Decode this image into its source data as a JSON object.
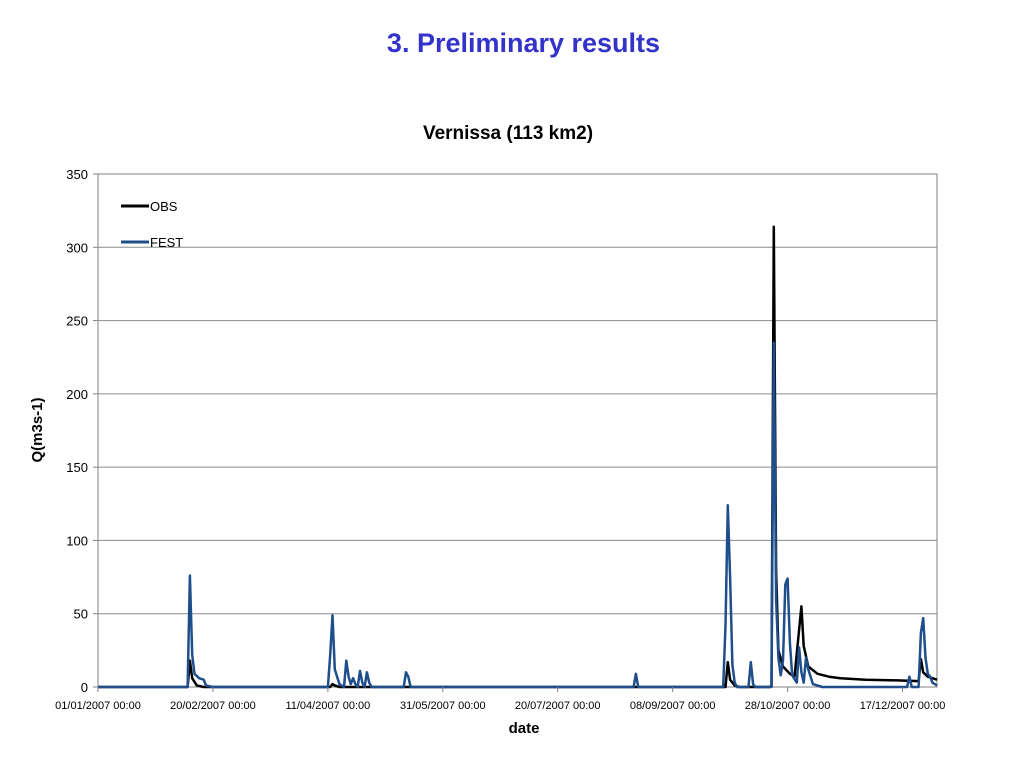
{
  "slide": {
    "title": "3. Preliminary results"
  },
  "chart_data": {
    "type": "line",
    "title": "Vernissa (113 km2)",
    "xlabel": "date",
    "ylabel": "Q(m3s-1)",
    "ylim": [
      0,
      350
    ],
    "y_ticks": [
      "0",
      "50",
      "100",
      "150",
      "200",
      "250",
      "300",
      "350"
    ],
    "xlim": [
      "2007-01-01",
      "2008-01-01"
    ],
    "x_ticks": [
      "01/01/2007 00:00",
      "20/02/2007 00:00",
      "11/04/2007 00:00",
      "31/05/2007 00:00",
      "20/07/2007 00:00",
      "08/09/2007 00:00",
      "28/10/2007 00:00",
      "17/12/2007 00:00"
    ],
    "grid": true,
    "legend": "top-left",
    "series": [
      {
        "name": "OBS",
        "color": "#000000",
        "points": [
          [
            "2007-01-01",
            0
          ],
          [
            "2007-02-09",
            0
          ],
          [
            "2007-02-10",
            18
          ],
          [
            "2007-02-11",
            6
          ],
          [
            "2007-02-13",
            1
          ],
          [
            "2007-02-16",
            0
          ],
          [
            "2007-04-12",
            0
          ],
          [
            "2007-04-13",
            2
          ],
          [
            "2007-04-14",
            1
          ],
          [
            "2007-04-16",
            0
          ],
          [
            "2007-06-01",
            0
          ],
          [
            "2007-08-31",
            0
          ],
          [
            "2007-10-01",
            0
          ],
          [
            "2007-10-02",
            17
          ],
          [
            "2007-10-03",
            5
          ],
          [
            "2007-10-05",
            1
          ],
          [
            "2007-10-07",
            0
          ],
          [
            "2007-10-20",
            0
          ],
          [
            "2007-10-21",
            0.5
          ],
          [
            "2007-10-22",
            314
          ],
          [
            "2007-10-23",
            80
          ],
          [
            "2007-10-24",
            25
          ],
          [
            "2007-10-26",
            14
          ],
          [
            "2007-10-29",
            9
          ],
          [
            "2007-10-31",
            7
          ],
          [
            "2007-11-03",
            55
          ],
          [
            "2007-11-04",
            28
          ],
          [
            "2007-11-06",
            14
          ],
          [
            "2007-11-10",
            9
          ],
          [
            "2007-11-15",
            7
          ],
          [
            "2007-11-20",
            6
          ],
          [
            "2007-12-01",
            5
          ],
          [
            "2007-12-15",
            4.5
          ],
          [
            "2007-12-24",
            4
          ],
          [
            "2007-12-25",
            19
          ],
          [
            "2007-12-26",
            10
          ],
          [
            "2007-12-28",
            7
          ],
          [
            "2008-01-01",
            5
          ]
        ]
      },
      {
        "name": "FEST",
        "color": "#1f4e8c",
        "points": [
          [
            "2007-01-01",
            0
          ],
          [
            "2007-02-09",
            0
          ],
          [
            "2007-02-10",
            76
          ],
          [
            "2007-02-11",
            22
          ],
          [
            "2007-02-12",
            9
          ],
          [
            "2007-02-14",
            6
          ],
          [
            "2007-02-16",
            5
          ],
          [
            "2007-02-17",
            1
          ],
          [
            "2007-02-20",
            0
          ],
          [
            "2007-04-11",
            0
          ],
          [
            "2007-04-12",
            22
          ],
          [
            "2007-04-13",
            49
          ],
          [
            "2007-04-14",
            12
          ],
          [
            "2007-04-16",
            2
          ],
          [
            "2007-04-18",
            0
          ],
          [
            "2007-04-19",
            18
          ],
          [
            "2007-04-20",
            7
          ],
          [
            "2007-04-21",
            2
          ],
          [
            "2007-04-22",
            6
          ],
          [
            "2007-04-23",
            2
          ],
          [
            "2007-04-24",
            0
          ],
          [
            "2007-04-25",
            11
          ],
          [
            "2007-04-26",
            3
          ],
          [
            "2007-04-27",
            0
          ],
          [
            "2007-04-28",
            10
          ],
          [
            "2007-04-29",
            3
          ],
          [
            "2007-04-30",
            0
          ],
          [
            "2007-05-14",
            0
          ],
          [
            "2007-05-15",
            10
          ],
          [
            "2007-05-16",
            7
          ],
          [
            "2007-05-17",
            0
          ],
          [
            "2007-08-22",
            0
          ],
          [
            "2007-08-23",
            9
          ],
          [
            "2007-08-24",
            0
          ],
          [
            "2007-09-30",
            0
          ],
          [
            "2007-10-01",
            42
          ],
          [
            "2007-10-02",
            124
          ],
          [
            "2007-10-03",
            75
          ],
          [
            "2007-10-04",
            15
          ],
          [
            "2007-10-05",
            3
          ],
          [
            "2007-10-06",
            0
          ],
          [
            "2007-10-11",
            0
          ],
          [
            "2007-10-12",
            17
          ],
          [
            "2007-10-13",
            2
          ],
          [
            "2007-10-14",
            0
          ],
          [
            "2007-10-21",
            0
          ],
          [
            "2007-10-22",
            235
          ],
          [
            "2007-10-23",
            60
          ],
          [
            "2007-10-24",
            20
          ],
          [
            "2007-10-25",
            8
          ],
          [
            "2007-10-26",
            18
          ],
          [
            "2007-10-27",
            70
          ],
          [
            "2007-10-28",
            74
          ],
          [
            "2007-10-29",
            30
          ],
          [
            "2007-10-30",
            8
          ],
          [
            "2007-11-01",
            3
          ],
          [
            "2007-11-02",
            27
          ],
          [
            "2007-11-03",
            10
          ],
          [
            "2007-11-04",
            3
          ],
          [
            "2007-11-05",
            20
          ],
          [
            "2007-11-06",
            12
          ],
          [
            "2007-11-08",
            2
          ],
          [
            "2007-11-12",
            0
          ],
          [
            "2007-12-19",
            0
          ],
          [
            "2007-12-20",
            7
          ],
          [
            "2007-12-21",
            0
          ],
          [
            "2007-12-24",
            0
          ],
          [
            "2007-12-25",
            37
          ],
          [
            "2007-12-26",
            47
          ],
          [
            "2007-12-27",
            20
          ],
          [
            "2007-12-28",
            9
          ],
          [
            "2007-12-29",
            7
          ],
          [
            "2007-12-30",
            3
          ],
          [
            "2008-01-01",
            1
          ]
        ]
      }
    ]
  }
}
